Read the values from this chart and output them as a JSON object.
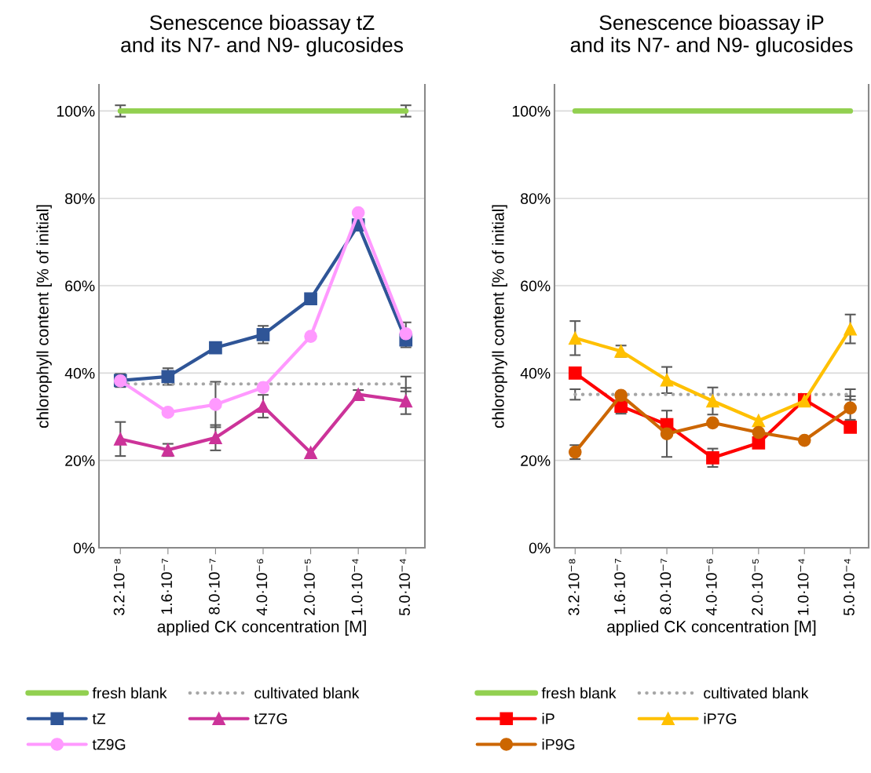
{
  "chart_data": [
    {
      "type": "line",
      "title": "Senescence bioassay tZ\nand its N7- and N9- glucosides",
      "xlabel": "applied CK concentration [M]",
      "ylabel": "chlorophyll content [% of initial]",
      "categories": [
        "3.2·10⁻⁸",
        "1.6·10⁻⁷",
        "8.0·10⁻⁷",
        "4.0·10⁻⁶",
        "2.0·10⁻⁵",
        "1.0·10⁻⁴",
        "5.0·10⁻⁴"
      ],
      "ylim": [
        0,
        106
      ],
      "yticks": [
        {
          "value": 0,
          "label": "0%"
        },
        {
          "value": 20,
          "label": "20%"
        },
        {
          "value": 40,
          "label": "40%"
        },
        {
          "value": 60,
          "label": "60%"
        },
        {
          "value": 80,
          "label": "80%"
        },
        {
          "value": 100,
          "label": "100%"
        }
      ],
      "grid": "y",
      "legend": "bottom",
      "series": [
        {
          "name": "fresh blank",
          "color": "#92d050",
          "marker": "none",
          "line_style": "solid",
          "values": [
            100,
            100,
            100,
            100,
            100,
            100,
            100
          ],
          "errors": [
            1.3,
            null,
            null,
            null,
            null,
            null,
            1.3
          ]
        },
        {
          "name": "cultivated blank",
          "color": "#a6a6a6",
          "marker": "none",
          "line_style": "dotted",
          "values": [
            37.5,
            37.5,
            37.5,
            37.5,
            37.5,
            37.5,
            37.5
          ],
          "errors": [
            null,
            null,
            null,
            null,
            null,
            null,
            1.7
          ]
        },
        {
          "name": "tZ",
          "color": "#2f5597",
          "marker": "square",
          "line_style": "solid",
          "values": [
            38.3,
            39.2,
            45.8,
            48.8,
            57.0,
            73.9,
            47.6
          ],
          "errors": [
            1.5,
            1.9,
            null,
            2.0,
            null,
            null,
            1.7
          ]
        },
        {
          "name": "tZ7G",
          "color": "#cc3399",
          "marker": "triangle",
          "line_style": "solid",
          "values": [
            24.9,
            22.4,
            25.2,
            32.4,
            21.8,
            35.1,
            33.6
          ],
          "errors": [
            3.9,
            1.4,
            2.9,
            2.6,
            null,
            1.0,
            3.0
          ]
        },
        {
          "name": "tZ9G",
          "color": "#ff99ff",
          "marker": "circle",
          "line_style": "solid",
          "values": [
            38.2,
            31.0,
            32.8,
            36.7,
            48.4,
            76.7,
            49.0
          ],
          "errors": [
            null,
            null,
            5.2,
            null,
            null,
            null,
            2.6
          ]
        }
      ]
    },
    {
      "type": "line",
      "title": "Senescence bioassay iP\nand its N7- and N9- glucosides",
      "xlabel": "applied CK concentration [M]",
      "ylabel": "chlorophyll content [% of initial]",
      "categories": [
        "3.2·10⁻⁸",
        "1.6·10⁻⁷",
        "8.0·10⁻⁷",
        "4.0·10⁻⁶",
        "2.0·10⁻⁵",
        "1.0·10⁻⁴",
        "5.0·10⁻⁴"
      ],
      "ylim": [
        0,
        106
      ],
      "yticks": [
        {
          "value": 0,
          "label": "0%"
        },
        {
          "value": 20,
          "label": "20%"
        },
        {
          "value": 40,
          "label": "40%"
        },
        {
          "value": 60,
          "label": "60%"
        },
        {
          "value": 80,
          "label": "80%"
        },
        {
          "value": 100,
          "label": "100%"
        }
      ],
      "grid": "y",
      "legend": "bottom",
      "series": [
        {
          "name": "fresh blank",
          "color": "#92d050",
          "marker": "none",
          "line_style": "solid",
          "values": [
            100,
            100,
            100,
            100,
            100,
            100,
            100
          ]
        },
        {
          "name": "cultivated blank",
          "color": "#a6a6a6",
          "marker": "none",
          "line_style": "dotted",
          "values": [
            35.1,
            35.1,
            35.1,
            35.1,
            35.1,
            35.1,
            35.1
          ],
          "errors": [
            1.2,
            null,
            null,
            null,
            null,
            null,
            1.2
          ]
        },
        {
          "name": "iP",
          "color": "#ff0000",
          "marker": "square",
          "line_style": "solid",
          "values": [
            40.0,
            32.4,
            28.2,
            20.6,
            24.0,
            33.9,
            27.6
          ],
          "errors": [
            null,
            1.7,
            null,
            2.1,
            null,
            null,
            null
          ]
        },
        {
          "name": "iP7G",
          "color": "#ffc000",
          "marker": "triangle",
          "line_style": "solid",
          "values": [
            48.0,
            45.0,
            38.4,
            33.6,
            29.1,
            33.6,
            50.1
          ],
          "errors": [
            3.9,
            1.3,
            3.0,
            3.1,
            null,
            null,
            3.3
          ]
        },
        {
          "name": "iP9G",
          "color": "#cc6600",
          "marker": "circle",
          "line_style": "solid",
          "values": [
            21.9,
            34.9,
            26.1,
            28.6,
            26.4,
            24.6,
            32.0
          ],
          "errors": [
            1.6,
            null,
            5.3,
            null,
            null,
            null,
            2.7
          ]
        }
      ]
    }
  ]
}
